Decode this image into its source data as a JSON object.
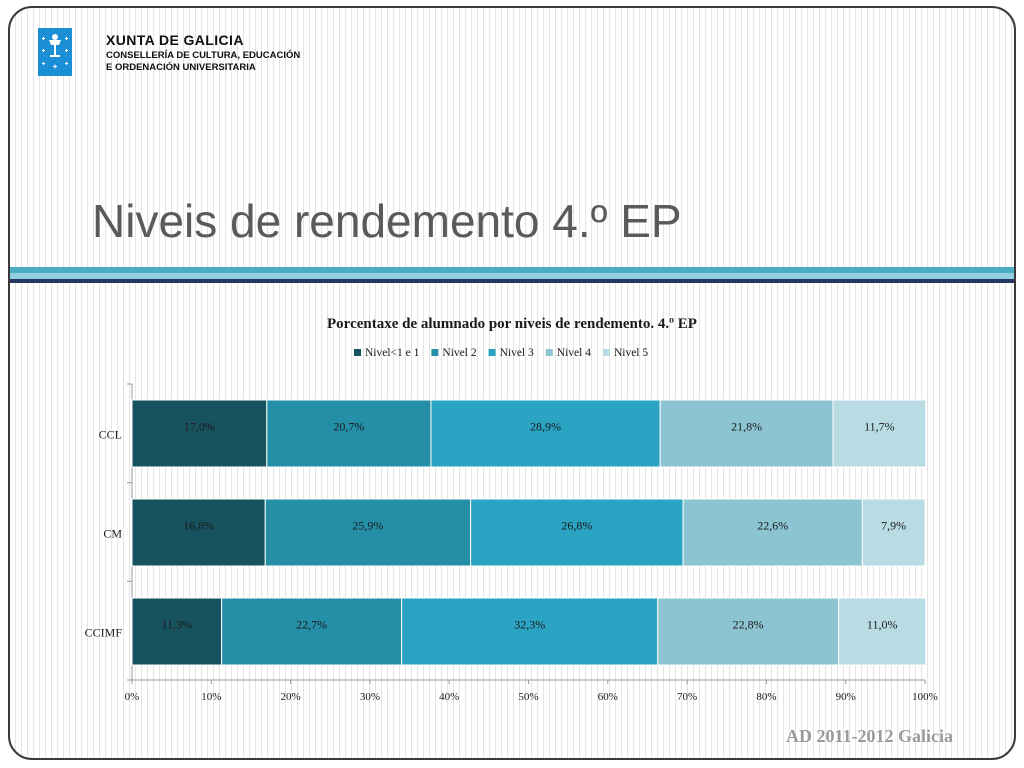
{
  "header": {
    "org_name": "XUNTA DE GALICIA",
    "dept_line1": "CONSELLERÍA DE CULTURA, EDUCACIÓN",
    "dept_line2": "E ORDENACIÓN UNIVERSITARIA"
  },
  "slide_title": "Niveis de rendemento 4.º EP",
  "footer_text": "AD 2011-2012 Galicia",
  "colors": {
    "accent_band": "#4bacc6",
    "accent_band_light": "#8fcfe0",
    "accent_band_dark": "#24375f"
  },
  "chart_data": {
    "type": "bar",
    "orientation": "horizontal",
    "stacked": "percent",
    "title": "Porcentaxe de alumnado por niveis de rendemento. 4.º EP",
    "legend_position": "top",
    "categories": [
      "CCL",
      "CM",
      "CCIMF"
    ],
    "xlim": [
      0,
      100
    ],
    "x_ticks": [
      "0%",
      "10%",
      "20%",
      "30%",
      "40%",
      "50%",
      "60%",
      "70%",
      "80%",
      "90%",
      "100%"
    ],
    "series": [
      {
        "name": "Nivel<1 e 1",
        "color": "#17535f",
        "values": [
          17.0,
          16.8,
          11.3
        ],
        "labels": [
          "17,0%",
          "16,8%",
          "11,3%"
        ]
      },
      {
        "name": "Nivel 2",
        "color": "#268fa8",
        "values": [
          20.7,
          25.9,
          22.7
        ],
        "labels": [
          "20,7%",
          "25,9%",
          "22,7%"
        ]
      },
      {
        "name": "Nivel 3",
        "color": "#2aa4c2",
        "values": [
          28.9,
          26.8,
          32.3
        ],
        "labels": [
          "28,9%",
          "26,8%",
          "32,3%"
        ]
      },
      {
        "name": "Nivel 4",
        "color": "#8cc4d2",
        "values": [
          21.8,
          22.6,
          22.8
        ],
        "labels": [
          "21,8%",
          "22,6%",
          "22,8%"
        ]
      },
      {
        "name": "Nivel 5",
        "color": "#b9dbe3",
        "values": [
          11.7,
          7.9,
          11.0
        ],
        "labels": [
          "11,7%",
          "7,9%",
          "11,0%"
        ]
      }
    ]
  }
}
